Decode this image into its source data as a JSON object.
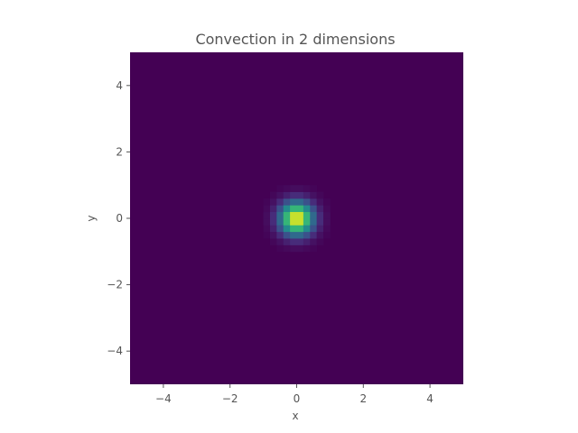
{
  "chart_data": {
    "type": "heatmap",
    "title": "Convection in 2 dimensions",
    "xlabel": "x",
    "ylabel": "y",
    "xlim": [
      -5,
      5
    ],
    "ylim": [
      -5,
      5
    ],
    "x_ticks": [
      -4,
      -2,
      0,
      2,
      4
    ],
    "y_ticks": [
      -4,
      -2,
      0,
      2,
      4
    ],
    "x_tick_labels": [
      "−4",
      "−2",
      "0",
      "2",
      "4"
    ],
    "y_tick_labels": [
      "−4",
      "−2",
      "0",
      "2",
      "4"
    ],
    "grid": false,
    "colormap": "viridis",
    "field": {
      "shape": "gaussian",
      "center": [
        0,
        0
      ],
      "sigma": 0.35,
      "peak": 1.0,
      "resolution": 50
    }
  },
  "colors": {
    "background": "#ffffff",
    "text": "#555555",
    "tick": "#555555"
  }
}
